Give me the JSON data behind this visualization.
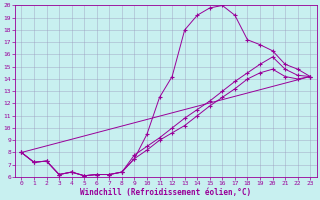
{
  "xlabel": "Windchill (Refroidissement éolien,°C)",
  "bg_color": "#c8f0f0",
  "line_color": "#990099",
  "grid_color": "#9999bb",
  "xlim": [
    -0.5,
    23.5
  ],
  "ylim": [
    6,
    20
  ],
  "xticks": [
    0,
    1,
    2,
    3,
    4,
    5,
    6,
    7,
    8,
    9,
    10,
    11,
    12,
    13,
    14,
    15,
    16,
    17,
    18,
    19,
    20,
    21,
    22,
    23
  ],
  "yticks": [
    6,
    7,
    8,
    9,
    10,
    11,
    12,
    13,
    14,
    15,
    16,
    17,
    18,
    19,
    20
  ],
  "line1_x": [
    0,
    1,
    2,
    3,
    4,
    5,
    6,
    7,
    8,
    9,
    10,
    11,
    12,
    13,
    14,
    15,
    16,
    17,
    18,
    19,
    20,
    21,
    22,
    23
  ],
  "line1_y": [
    8.0,
    7.2,
    7.3,
    6.2,
    6.4,
    6.1,
    6.2,
    6.2,
    6.4,
    7.5,
    9.5,
    12.5,
    14.2,
    18.0,
    19.2,
    19.8,
    20.0,
    19.2,
    17.2,
    16.8,
    16.3,
    15.2,
    14.8,
    14.2
  ],
  "line2_x": [
    0,
    1,
    2,
    3,
    4,
    5,
    6,
    7,
    8,
    9,
    10,
    11,
    12,
    13,
    14,
    15,
    16,
    17,
    18,
    19,
    20,
    21,
    22,
    23
  ],
  "line2_y": [
    8.0,
    7.2,
    7.3,
    6.2,
    6.4,
    6.1,
    6.2,
    6.2,
    6.4,
    7.8,
    8.5,
    9.2,
    10.0,
    10.8,
    11.5,
    12.2,
    13.0,
    13.8,
    14.5,
    15.2,
    15.8,
    14.8,
    14.3,
    14.2
  ],
  "line3_x": [
    0,
    1,
    2,
    3,
    4,
    5,
    6,
    7,
    8,
    9,
    10,
    11,
    12,
    13,
    14,
    15,
    16,
    17,
    18,
    19,
    20,
    21,
    22,
    23
  ],
  "line3_y": [
    8.0,
    7.2,
    7.3,
    6.2,
    6.4,
    6.1,
    6.2,
    6.2,
    6.4,
    7.5,
    8.2,
    9.0,
    9.6,
    10.2,
    11.0,
    11.8,
    12.5,
    13.2,
    14.0,
    14.5,
    14.8,
    14.2,
    14.0,
    14.2
  ],
  "line4_x": [
    0,
    23
  ],
  "line4_y": [
    8.0,
    14.2
  ]
}
